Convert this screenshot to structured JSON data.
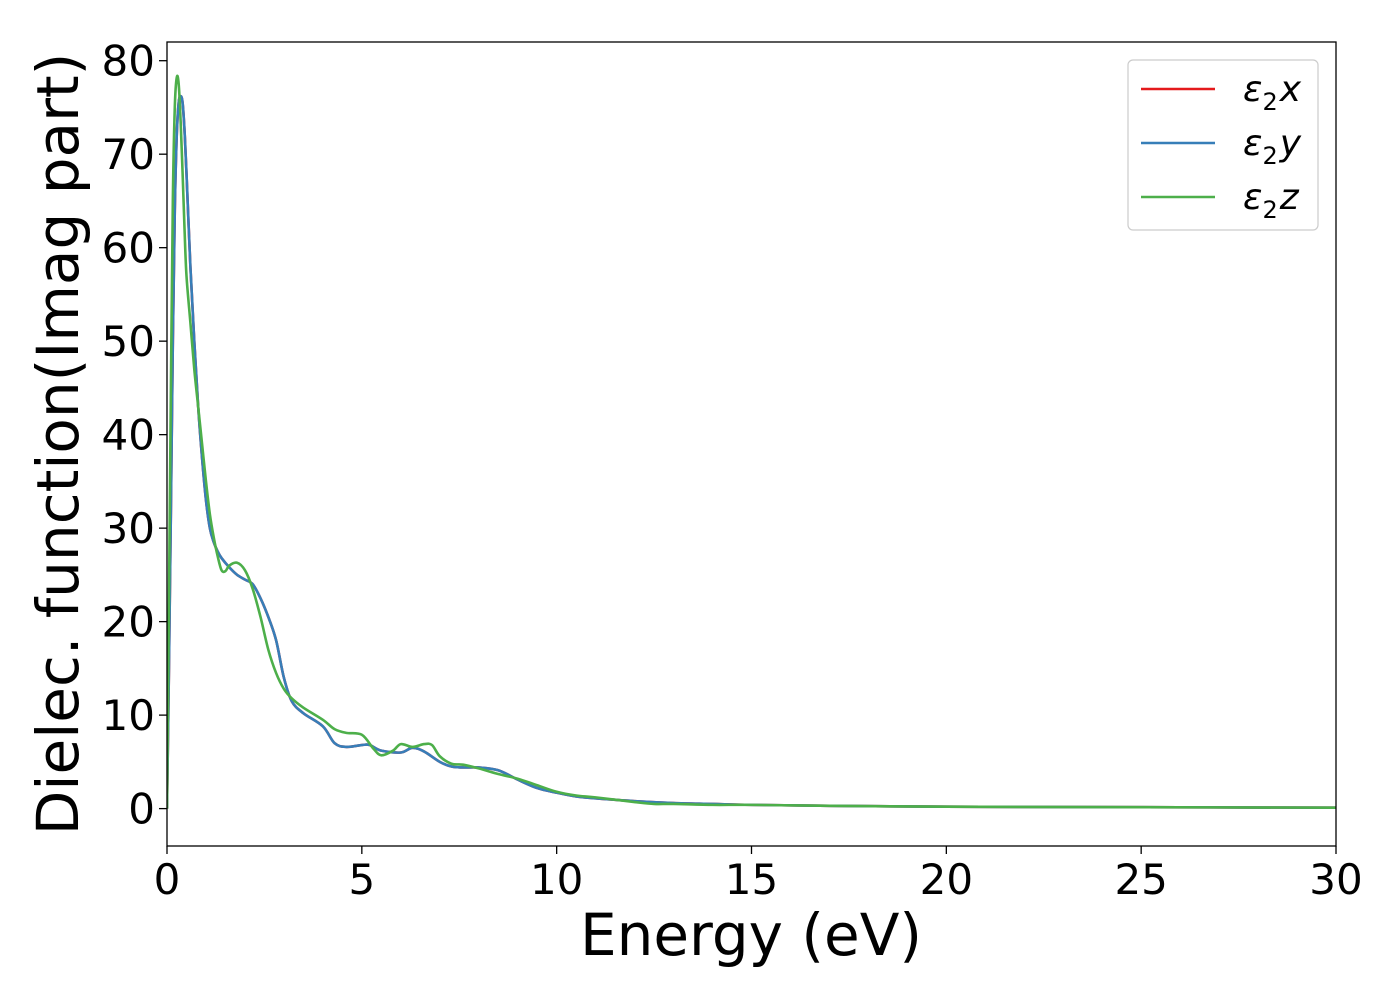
{
  "chart_data": {
    "type": "line",
    "title": "",
    "xlabel": "Energy (eV)",
    "ylabel": "Dielec. function(Imag part)",
    "xlim": [
      0,
      30
    ],
    "ylim": [
      -4,
      82
    ],
    "xticks": [
      0,
      5,
      10,
      15,
      20,
      25,
      30
    ],
    "yticks": [
      0,
      10,
      20,
      30,
      40,
      50,
      60,
      70,
      80
    ],
    "grid": false,
    "legend_position": "top-right",
    "series": [
      {
        "name": "ε₂x",
        "legend_main": "ε",
        "legend_sub": "2",
        "legend_axis": "x",
        "color": "#e41a1c",
        "x": [
          0,
          0.05,
          0.1,
          0.15,
          0.2,
          0.25,
          0.3,
          0.35,
          0.4,
          0.45,
          0.5,
          0.6,
          0.7,
          0.8,
          0.9,
          1.0,
          1.1,
          1.2,
          1.3,
          1.4,
          1.6,
          1.8,
          2.0,
          2.2,
          2.4,
          2.6,
          2.8,
          3.0,
          3.2,
          3.5,
          4.0,
          4.3,
          4.6,
          5.0,
          5.2,
          5.5,
          6.0,
          6.3,
          6.6,
          7.0,
          7.3,
          7.6,
          8.0,
          8.5,
          9.0,
          9.5,
          10.0,
          10.5,
          11.0,
          12.0,
          13.0,
          14.0,
          15.0,
          17.0,
          20.0,
          25.0,
          30.0
        ],
        "y": [
          0,
          15,
          32,
          50,
          64,
          72,
          75.5,
          76.2,
          75.5,
          72.5,
          68,
          58,
          50,
          43,
          37.5,
          33,
          30,
          28.5,
          27.5,
          26.8,
          25.8,
          25,
          24.5,
          24,
          22.5,
          20.5,
          18,
          14,
          11.5,
          10.2,
          8.8,
          7,
          6.6,
          6.8,
          6.8,
          6.2,
          6.0,
          6.5,
          6.1,
          5.0,
          4.5,
          4.4,
          4.4,
          4.1,
          3.1,
          2.2,
          1.7,
          1.3,
          1.1,
          0.8,
          0.6,
          0.5,
          0.4,
          0.3,
          0.2,
          0.15,
          0.1
        ]
      },
      {
        "name": "ε₂y",
        "legend_main": "ε",
        "legend_sub": "2",
        "legend_axis": "y",
        "color": "#377eb8",
        "x": [
          0,
          0.05,
          0.1,
          0.15,
          0.2,
          0.25,
          0.3,
          0.35,
          0.4,
          0.45,
          0.5,
          0.6,
          0.7,
          0.8,
          0.9,
          1.0,
          1.1,
          1.2,
          1.3,
          1.4,
          1.6,
          1.8,
          2.0,
          2.2,
          2.4,
          2.6,
          2.8,
          3.0,
          3.2,
          3.5,
          4.0,
          4.3,
          4.6,
          5.0,
          5.2,
          5.5,
          6.0,
          6.3,
          6.6,
          7.0,
          7.3,
          7.6,
          8.0,
          8.5,
          9.0,
          9.5,
          10.0,
          10.5,
          11.0,
          12.0,
          13.0,
          14.0,
          15.0,
          17.0,
          20.0,
          25.0,
          30.0
        ],
        "y": [
          0,
          15,
          32,
          50,
          64,
          72,
          75.5,
          76.2,
          75.5,
          72.5,
          68,
          58,
          50,
          43,
          37.5,
          33,
          30,
          28.5,
          27.5,
          26.8,
          25.8,
          25,
          24.5,
          24,
          22.5,
          20.5,
          18,
          14,
          11.5,
          10.2,
          8.8,
          7,
          6.6,
          6.8,
          6.8,
          6.2,
          6.0,
          6.5,
          6.1,
          5.0,
          4.5,
          4.4,
          4.4,
          4.1,
          3.1,
          2.2,
          1.7,
          1.3,
          1.1,
          0.8,
          0.6,
          0.5,
          0.4,
          0.3,
          0.2,
          0.15,
          0.1
        ]
      },
      {
        "name": "ε₂z",
        "legend_main": "ε",
        "legend_sub": "2",
        "legend_axis": "z",
        "color": "#4daf4a",
        "x": [
          0,
          0.05,
          0.1,
          0.15,
          0.2,
          0.25,
          0.3,
          0.35,
          0.4,
          0.45,
          0.5,
          0.6,
          0.7,
          0.8,
          0.9,
          1.0,
          1.1,
          1.2,
          1.3,
          1.4,
          1.5,
          1.6,
          1.8,
          2.0,
          2.2,
          2.4,
          2.6,
          2.8,
          3.0,
          3.2,
          3.5,
          4.0,
          4.3,
          4.6,
          5.0,
          5.3,
          5.5,
          5.8,
          6.0,
          6.3,
          6.6,
          6.8,
          7.0,
          7.3,
          7.6,
          8.0,
          8.5,
          9.0,
          9.5,
          10.0,
          10.5,
          11.0,
          12.0,
          12.5,
          13.0,
          14.0,
          15.0,
          17.0,
          20.0,
          25.0,
          30.0
        ],
        "y": [
          0,
          22,
          45,
          65,
          75,
          78.2,
          77.5,
          73.5,
          68,
          62,
          57,
          52,
          47,
          43,
          39,
          35,
          31.5,
          29,
          27,
          25.5,
          25.4,
          26,
          26.3,
          25.5,
          23.5,
          20.5,
          17,
          14.5,
          12.8,
          11.8,
          10.8,
          9.5,
          8.5,
          8.1,
          7.9,
          6.4,
          5.7,
          6.2,
          6.9,
          6.6,
          6.9,
          6.8,
          5.6,
          4.8,
          4.7,
          4.3,
          3.7,
          3.2,
          2.5,
          1.8,
          1.4,
          1.2,
          0.7,
          0.5,
          0.5,
          0.4,
          0.4,
          0.3,
          0.2,
          0.15,
          0.1
        ]
      }
    ]
  }
}
